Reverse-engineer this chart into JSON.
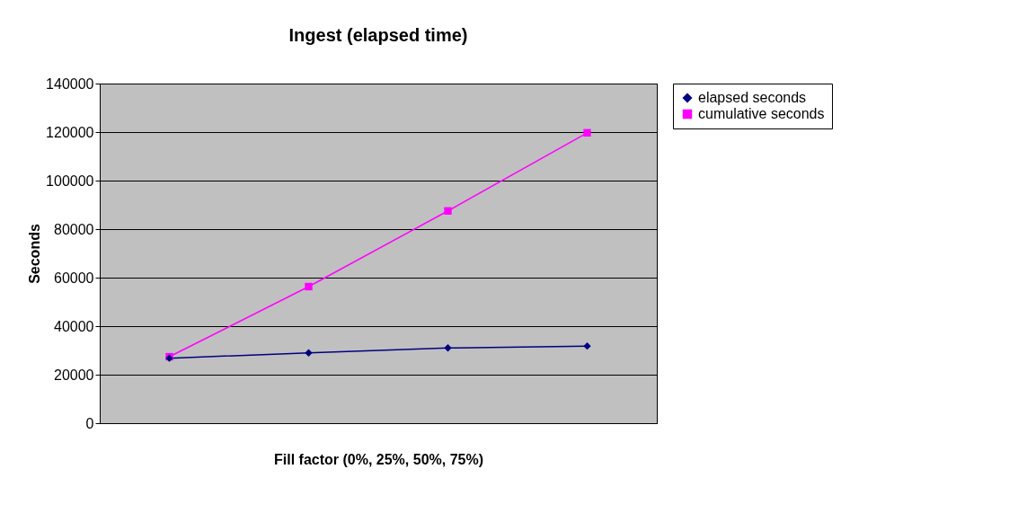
{
  "chart_data": {
    "type": "line",
    "title": "Ingest (elapsed time)",
    "xlabel": "Fill factor (0%, 25%, 50%, 75%)",
    "ylabel": "Seconds",
    "categories": [
      null,
      null,
      null,
      null
    ],
    "series": [
      {
        "name": "elapsed seconds",
        "color": "#000080",
        "marker": "diamond",
        "values": [
          26800,
          29000,
          31000,
          31800
        ]
      },
      {
        "name": "cumulative seconds",
        "color": "#ff00ff",
        "marker": "square",
        "values": [
          27400,
          56300,
          87500,
          119700
        ]
      }
    ],
    "ylim": [
      0,
      140000
    ],
    "yticks": [
      0,
      20000,
      40000,
      60000,
      80000,
      100000,
      120000,
      140000
    ],
    "grid": "y",
    "legend": "right",
    "line_style": "solid"
  }
}
